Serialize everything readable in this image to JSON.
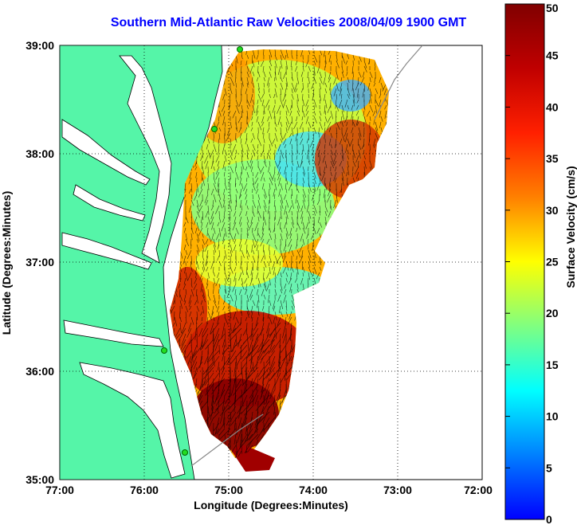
{
  "title": "Southern Mid-Atlantic Raw Velocities 2008/04/09 1900 GMT",
  "axes": {
    "xlabel": "Longitude (Degrees:Minutes)",
    "ylabel": "Latitude (Degrees:Minutes)",
    "x_ticks": [
      "77:00",
      "76:00",
      "75:00",
      "74:00",
      "73:00",
      "72:00"
    ],
    "y_ticks": [
      "39:00",
      "38:00",
      "37:00",
      "36:00",
      "35:00"
    ],
    "xlim": [
      -77,
      -72
    ],
    "ylim": [
      35,
      39
    ],
    "grid": true
  },
  "colorbar": {
    "label": "Surface Velocity (cm/s)",
    "ticks": [
      "0",
      "5",
      "10",
      "15",
      "20",
      "25",
      "30",
      "35",
      "40",
      "45",
      "50"
    ],
    "range": [
      0,
      50
    ]
  },
  "colors": {
    "land": "#55f5a8",
    "water": "#ffffff",
    "title": "#0000ff",
    "station": "#22dd22"
  },
  "stations_count": 4
}
